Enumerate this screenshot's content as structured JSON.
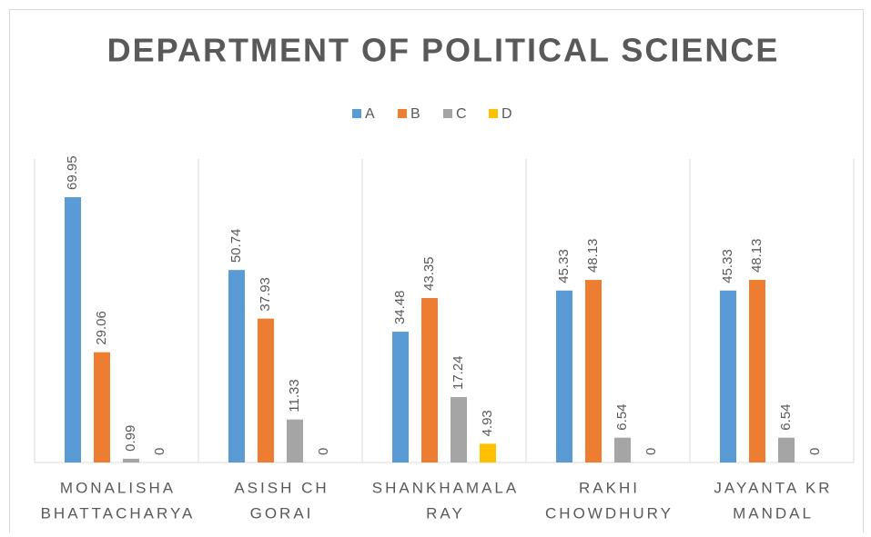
{
  "chart_data": {
    "type": "bar",
    "title": "DEPARTMENT OF POLITICAL SCIENCE",
    "categories": [
      [
        "MONALISHA",
        "BHATTACHARYA"
      ],
      [
        "ASISH CH",
        "GORAI"
      ],
      [
        "SHANKHAMALA",
        "RAY"
      ],
      [
        "RAKHI",
        "CHOWDHURY"
      ],
      [
        "JAYANTA KR",
        "MANDAL"
      ]
    ],
    "series": [
      {
        "name": "A",
        "color": "#5b9bd5",
        "values": [
          69.95,
          50.74,
          34.48,
          45.33,
          45.33
        ]
      },
      {
        "name": "B",
        "color": "#ed7d31",
        "values": [
          29.06,
          37.93,
          43.35,
          48.13,
          48.13
        ]
      },
      {
        "name": "C",
        "color": "#a5a5a5",
        "values": [
          0.99,
          11.33,
          17.24,
          6.54,
          6.54
        ]
      },
      {
        "name": "D",
        "color": "#ffc000",
        "values": [
          0,
          0,
          4.93,
          0,
          0
        ]
      }
    ],
    "ylim": [
      0,
      80
    ],
    "legend": "top",
    "data_labels": true
  }
}
